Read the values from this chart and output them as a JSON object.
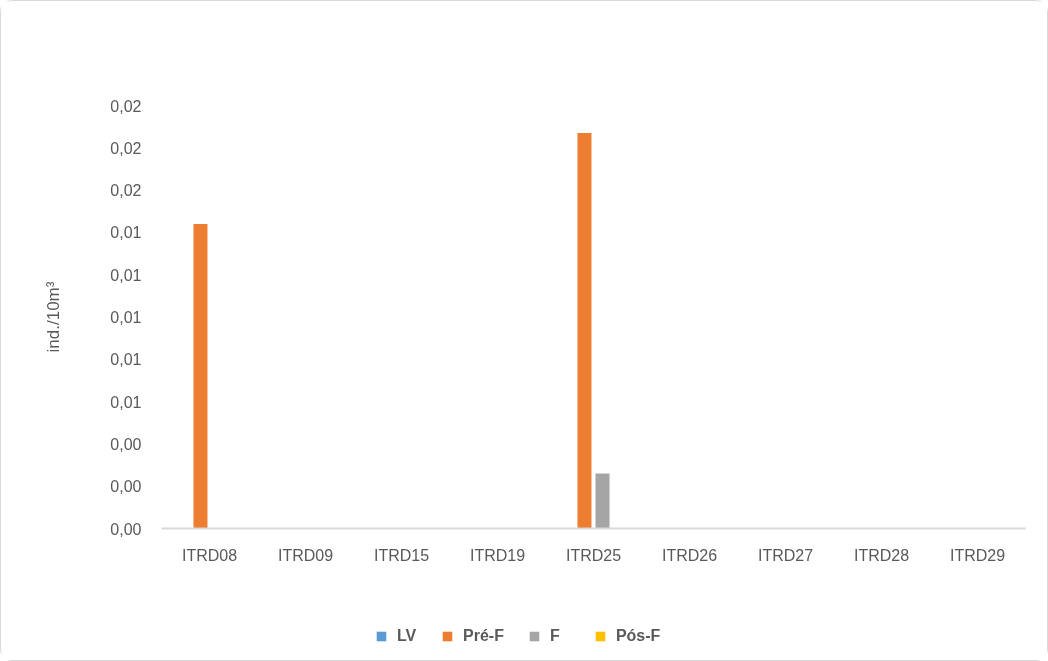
{
  "chart_data": {
    "type": "bar",
    "ylabel": "ind./10m³",
    "categories": [
      "ITRD08",
      "ITRD09",
      "ITRD15",
      "ITRD19",
      "ITRD25",
      "ITRD26",
      "ITRD27",
      "ITRD28",
      "ITRD29"
    ],
    "series": [
      {
        "name": "LV",
        "color": "#5b9bd5",
        "values": [
          0,
          0,
          0,
          0,
          0,
          0,
          0,
          0,
          0
        ]
      },
      {
        "name": "Pré-F",
        "color": "#ed7d31",
        "values": [
          0.0144,
          0,
          0,
          0,
          0.0187,
          0,
          0,
          0,
          0
        ]
      },
      {
        "name": "F",
        "color": "#a5a5a5",
        "values": [
          0,
          0,
          0,
          0,
          0.0026,
          0,
          0,
          0,
          0
        ]
      },
      {
        "name": "Pós-F",
        "color": "#ffc000",
        "values": [
          0,
          0,
          0,
          0,
          0,
          0,
          0,
          0,
          0
        ]
      }
    ],
    "ylim": [
      0,
      0.02
    ],
    "yticks": [
      {
        "value": 0,
        "label": "0,00"
      },
      {
        "value": 0.002,
        "label": "0,00"
      },
      {
        "value": 0.004,
        "label": "0,00"
      },
      {
        "value": 0.006,
        "label": "0,01"
      },
      {
        "value": 0.008,
        "label": "0,01"
      },
      {
        "value": 0.01,
        "label": "0,01"
      },
      {
        "value": 0.012,
        "label": "0,01"
      },
      {
        "value": 0.014,
        "label": "0,01"
      },
      {
        "value": 0.016,
        "label": "0,02"
      },
      {
        "value": 0.018,
        "label": "0,02"
      },
      {
        "value": 0.02,
        "label": "0,02"
      }
    ],
    "grid": false,
    "legend": "bottom"
  }
}
